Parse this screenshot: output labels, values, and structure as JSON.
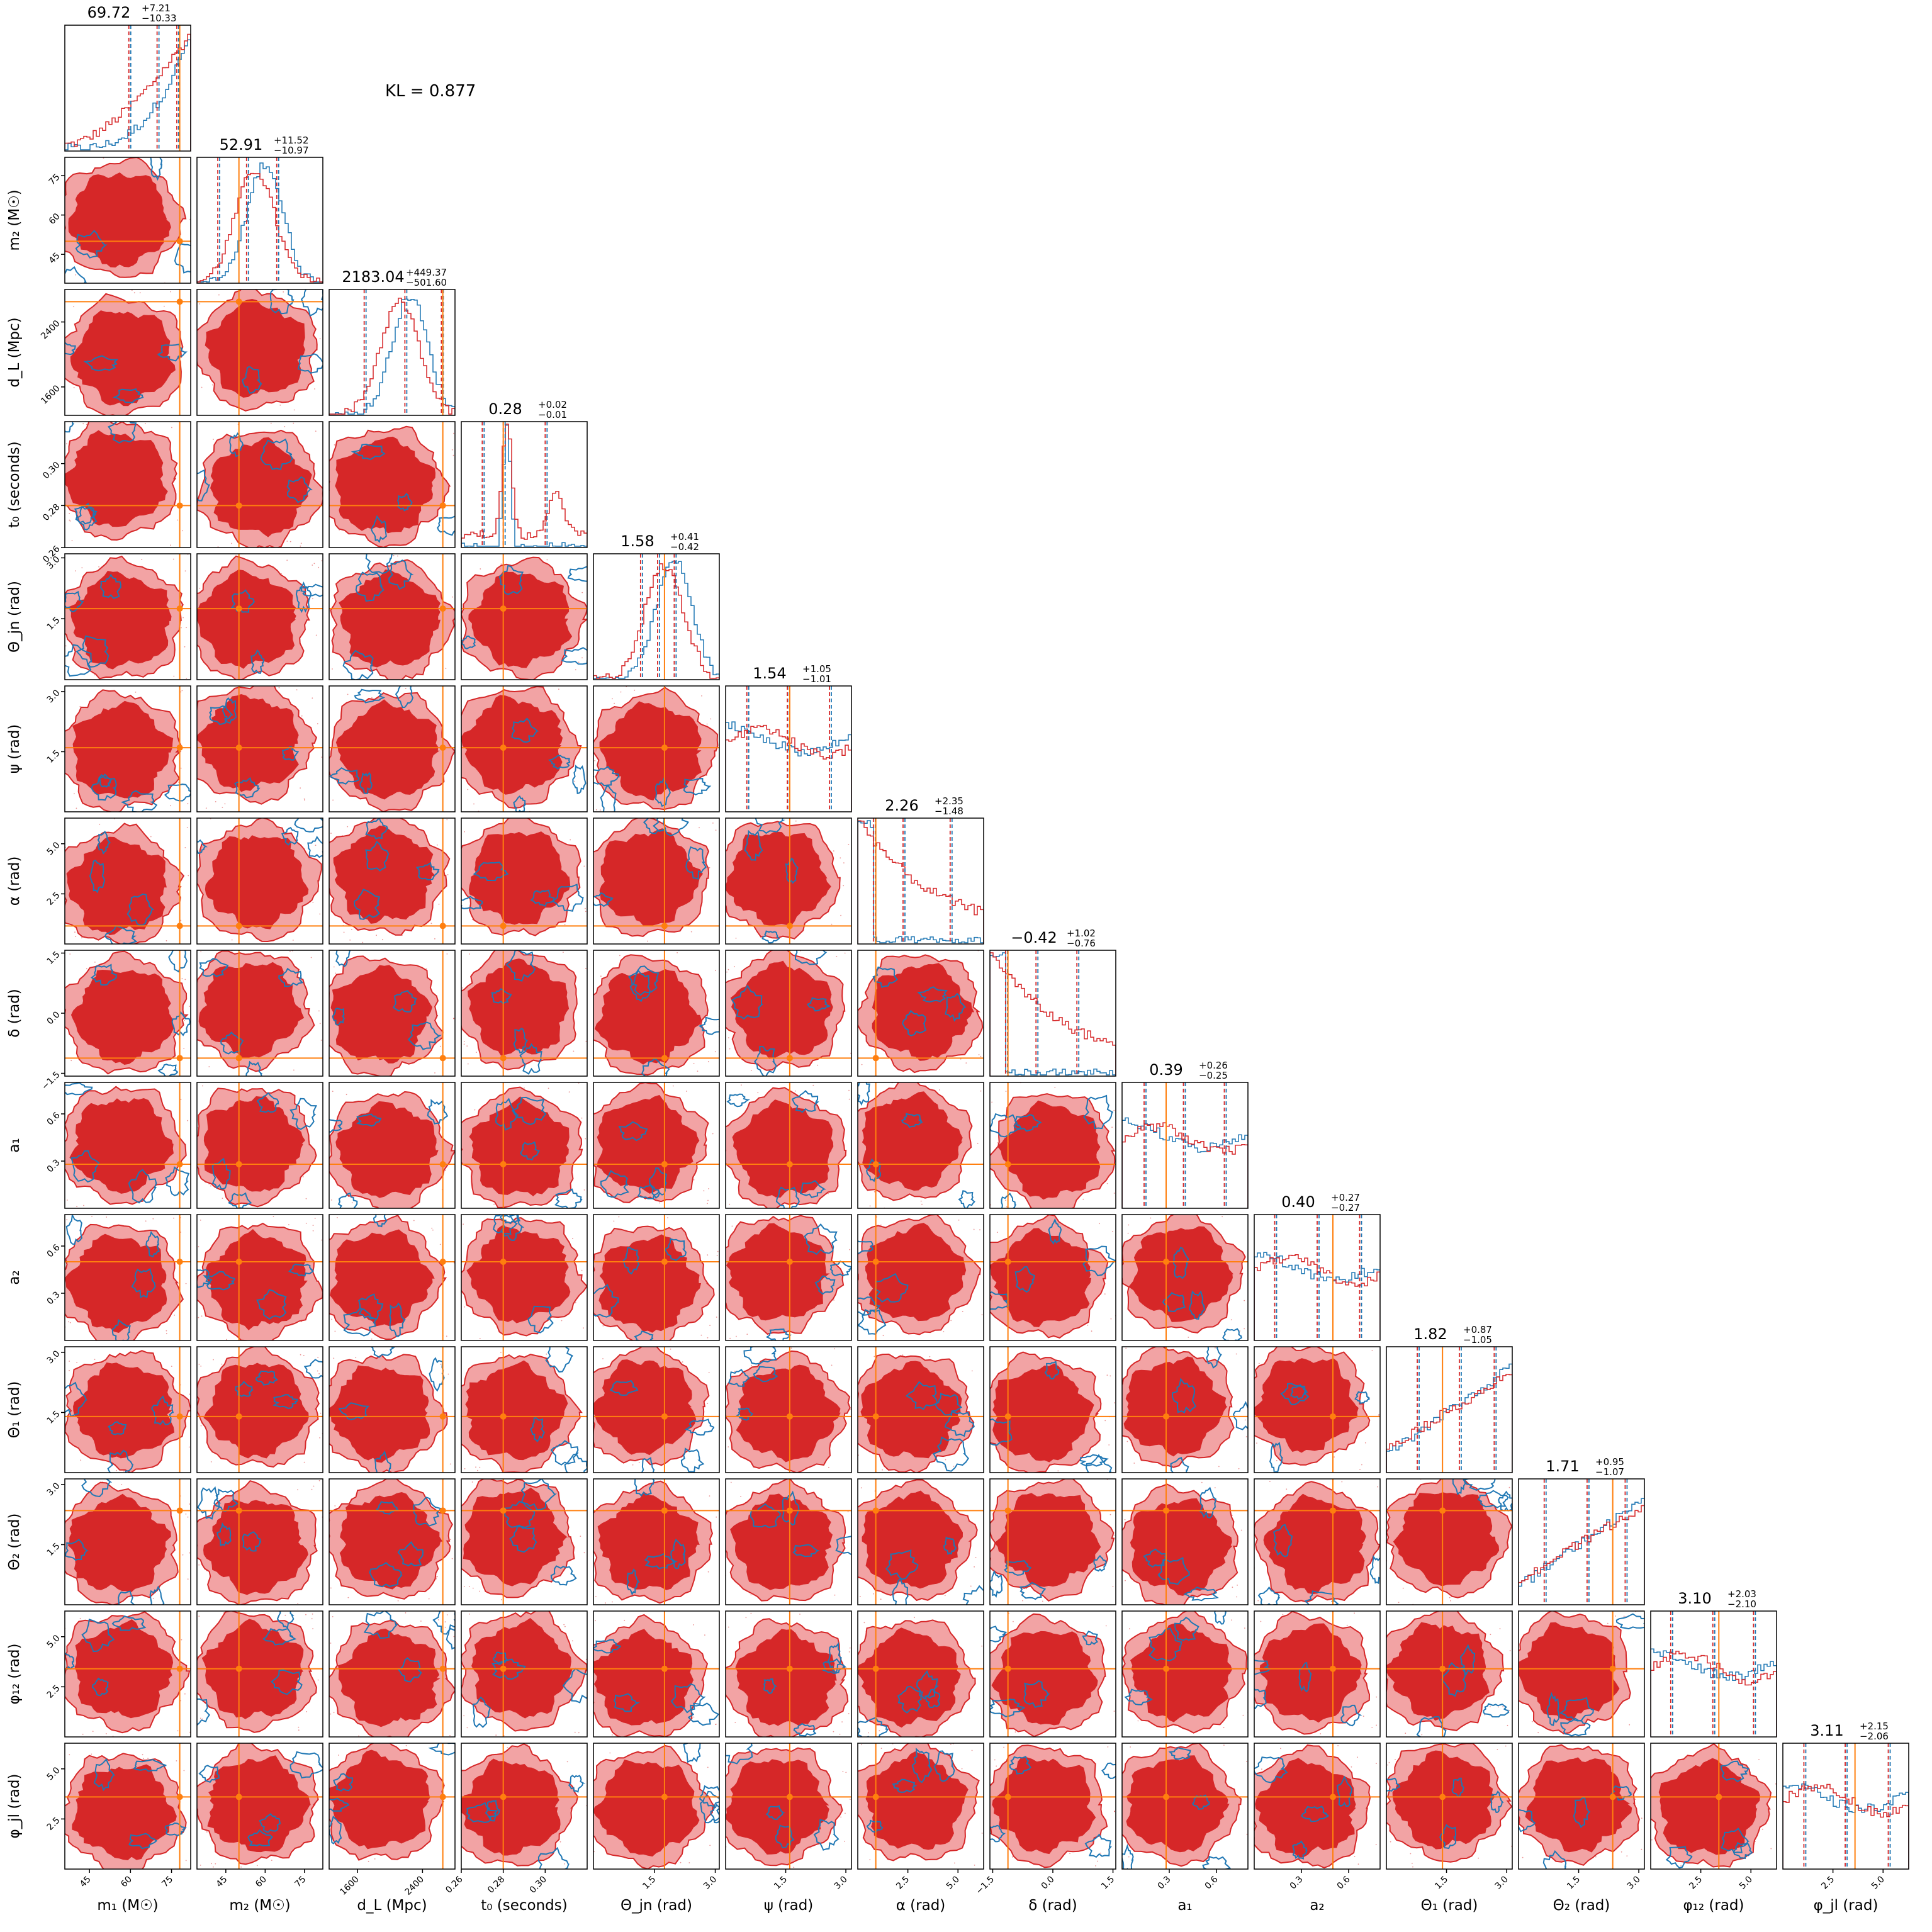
{
  "kl_text": "KL = 0.877",
  "colors": {
    "sample_a": "#d62728",
    "sample_a_light": "#f2a3a4",
    "sample_b": "#1f77b4",
    "truth": "#ff7f0e",
    "frame": "#000000"
  },
  "chart_data": {
    "type": "corner",
    "series": [
      {
        "color": "#d62728",
        "style": "filled contours and histograms"
      },
      {
        "color": "#1f77b4",
        "style": "contour lines and histograms"
      }
    ],
    "parameters": [
      {
        "label": "m₁ (M☉)",
        "range": [
          36,
          82
        ],
        "ticks": [
          45,
          60,
          75
        ],
        "tick_labels": [
          "45",
          "60",
          "75"
        ],
        "truth": 78,
        "title": {
          "value": "69.72",
          "plus": "+7.21",
          "minus": "−10.33"
        },
        "quantiles": [
          59.4,
          69.72,
          76.93
        ]
      },
      {
        "label": "m₂ (M☉)",
        "range": [
          34,
          82
        ],
        "ticks": [
          45,
          60,
          75
        ],
        "tick_labels": [
          "45",
          "60",
          "75"
        ],
        "truth": 50,
        "title": {
          "value": "52.91",
          "plus": "+11.52",
          "minus": "−10.97"
        },
        "quantiles": [
          41.94,
          52.91,
          64.43
        ]
      },
      {
        "label": "d_L (Mpc)",
        "range": [
          1250,
          2800
        ],
        "ticks": [
          1600,
          2400
        ],
        "tick_labels": [
          "1600",
          "2400"
        ],
        "truth": 2650,
        "title": {
          "value": "2183.04",
          "plus": "+449.37",
          "minus": "−501.60"
        },
        "quantiles": [
          1681.44,
          2183.04,
          2632.41
        ]
      },
      {
        "label": "t₀ (seconds)",
        "range": [
          0.26,
          0.32
        ],
        "ticks": [
          0.26,
          0.28,
          0.3
        ],
        "tick_labels": [
          "0.26",
          "0.28",
          "0.30"
        ],
        "truth": 0.28,
        "title": {
          "value": "0.28",
          "plus": "+0.02",
          "minus": "−0.01"
        },
        "quantiles": [
          0.27,
          0.28,
          0.3
        ]
      },
      {
        "label": "Θ_jn (rad)",
        "range": [
          0,
          3.1
        ],
        "ticks": [
          1.5,
          3.0
        ],
        "tick_labels": [
          "1.5",
          "3.0"
        ],
        "truth": 1.75,
        "title": {
          "value": "1.58",
          "plus": "+0.41",
          "minus": "−0.42"
        },
        "quantiles": [
          1.16,
          1.58,
          1.99
        ]
      },
      {
        "label": "ψ (rad)",
        "range": [
          0,
          3.14
        ],
        "ticks": [
          1.5,
          3.0
        ],
        "tick_labels": [
          "1.5",
          "3.0"
        ],
        "truth": 1.6,
        "title": {
          "value": "1.54",
          "plus": "+1.05",
          "minus": "−1.01"
        },
        "quantiles": [
          0.53,
          1.54,
          2.59
        ]
      },
      {
        "label": "α (rad)",
        "range": [
          0,
          6.28
        ],
        "ticks": [
          2.5,
          5.0
        ],
        "tick_labels": [
          "2.5",
          "5.0"
        ],
        "truth": 0.9,
        "title": {
          "value": "2.26",
          "plus": "+2.35",
          "minus": "−1.48"
        },
        "quantiles": [
          0.78,
          2.26,
          4.61
        ]
      },
      {
        "label": "δ (rad)",
        "range": [
          -1.57,
          1.57
        ],
        "ticks": [
          -1.5,
          0.0,
          1.5
        ],
        "tick_labels": [
          "−1.5",
          "0.0",
          "1.5"
        ],
        "truth": -1.12,
        "title": {
          "value": "−0.42",
          "plus": "+1.02",
          "minus": "−0.76"
        },
        "quantiles": [
          -1.18,
          -0.42,
          0.6
        ]
      },
      {
        "label": "a₁",
        "range": [
          0,
          0.8
        ],
        "ticks": [
          0.3,
          0.6
        ],
        "tick_labels": [
          "0.3",
          "0.6"
        ],
        "truth": 0.28,
        "title": {
          "value": "0.39",
          "plus": "+0.26",
          "minus": "−0.25"
        },
        "quantiles": [
          0.14,
          0.39,
          0.65
        ]
      },
      {
        "label": "a₂",
        "range": [
          0,
          0.8
        ],
        "ticks": [
          0.3,
          0.6
        ],
        "tick_labels": [
          "0.3",
          "0.6"
        ],
        "truth": 0.5,
        "title": {
          "value": "0.40",
          "plus": "+0.27",
          "minus": "−0.27"
        },
        "quantiles": [
          0.13,
          0.4,
          0.67
        ]
      },
      {
        "label": "Θ₁ (rad)",
        "range": [
          0,
          3.14
        ],
        "ticks": [
          1.5,
          3.0
        ],
        "tick_labels": [
          "1.5",
          "3.0"
        ],
        "truth": 1.4,
        "title": {
          "value": "1.82",
          "plus": "+0.87",
          "minus": "−1.05"
        },
        "quantiles": [
          0.77,
          1.82,
          2.69
        ]
      },
      {
        "label": "Θ₂ (rad)",
        "range": [
          0,
          3.14
        ],
        "ticks": [
          1.5,
          3.0
        ],
        "tick_labels": [
          "1.5",
          "3.0"
        ],
        "truth": 2.35,
        "title": {
          "value": "1.71",
          "plus": "+0.95",
          "minus": "−1.07"
        },
        "quantiles": [
          0.64,
          1.71,
          2.66
        ]
      },
      {
        "label": "φ₁₂ (rad)",
        "range": [
          0,
          6.28
        ],
        "ticks": [
          2.5,
          5.0
        ],
        "tick_labels": [
          "2.5",
          "5.0"
        ],
        "truth": 3.4,
        "title": {
          "value": "3.10",
          "plus": "+2.03",
          "minus": "−2.10"
        },
        "quantiles": [
          1.0,
          3.1,
          5.13
        ]
      },
      {
        "label": "φ_jl (rad)",
        "range": [
          0,
          6.28
        ],
        "ticks": [
          2.5,
          5.0
        ],
        "tick_labels": [
          "2.5",
          "5.0"
        ],
        "truth": 3.6,
        "title": {
          "value": "3.11",
          "plus": "+2.15",
          "minus": "−2.06"
        },
        "quantiles": [
          1.05,
          3.11,
          5.26
        ]
      }
    ]
  }
}
